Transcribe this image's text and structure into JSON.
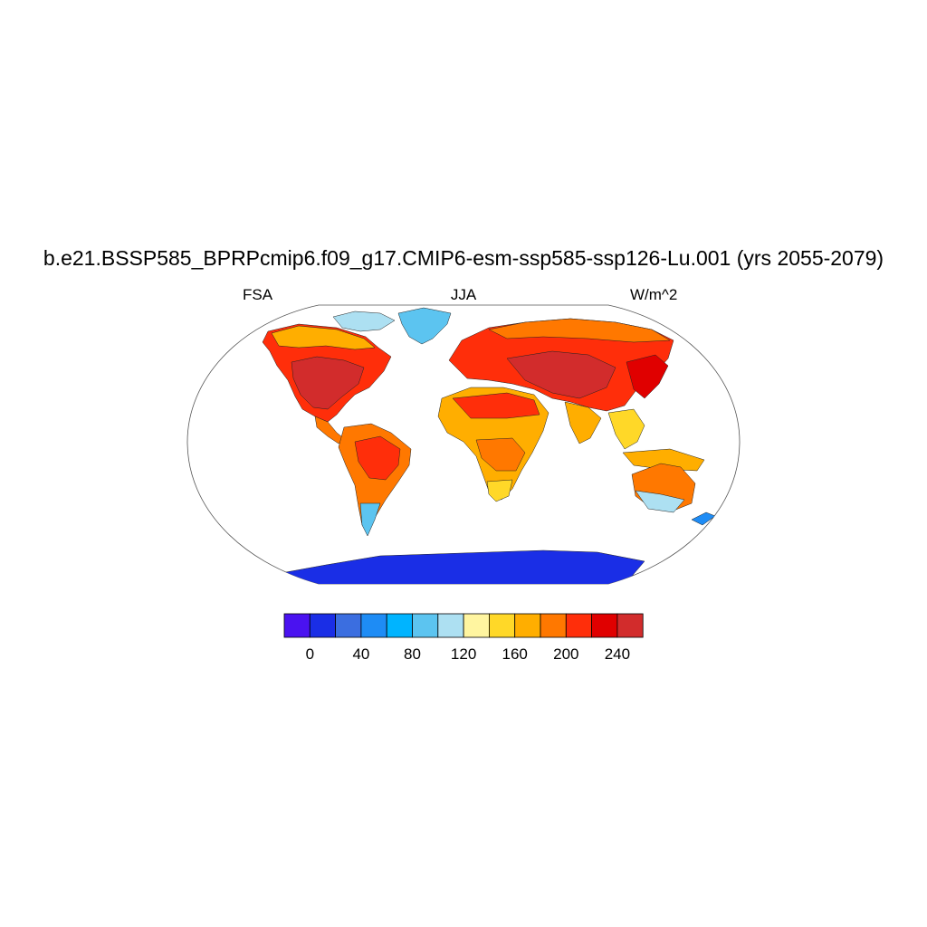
{
  "title": "b.e21.BSSP585_BPRPcmip6.f09_g17.CMIP6-esm-ssp585-ssp126-Lu.001 (yrs 2055-2079)",
  "left_label": "FSA",
  "center_label": "JJA",
  "right_label": "W/m^2",
  "colorbar": {
    "colors": [
      "#4a12f0",
      "#1a2ee6",
      "#3b6ee0",
      "#1e8cf5",
      "#00b4ff",
      "#5cc4f0",
      "#ade0f2",
      "#fff5a0",
      "#ffd828",
      "#ffae00",
      "#ff7800",
      "#ff2e0a",
      "#e00000",
      "#d22c2c"
    ],
    "tick_labels": [
      "0",
      "40",
      "80",
      "120",
      "160",
      "200",
      "240"
    ]
  },
  "map": {
    "projection": "Robinson",
    "field_colors": {
      "very_high": "#d22c2c",
      "high": "#e00000",
      "high_mid": "#ff2e0a",
      "mid": "#ff7800",
      "mid_low": "#ffae00",
      "low": "#ffd828",
      "lower": "#fff5a0",
      "cool": "#ade0f2",
      "cold": "#5cc4f0",
      "ice": "#1e8cf5",
      "antarctica": "#1a2ee6"
    }
  }
}
